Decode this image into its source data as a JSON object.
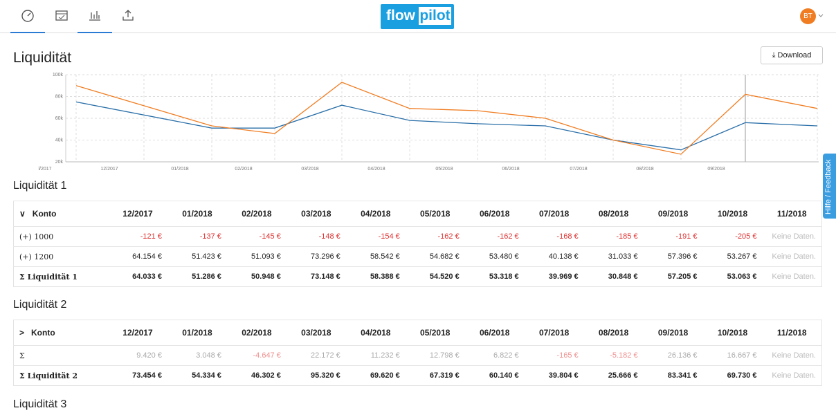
{
  "header": {
    "logo_left": "flow",
    "logo_right": "pilot",
    "avatar": "BT"
  },
  "page_title": "Liquidität",
  "download": "Download",
  "feedback": "Hilfe / Feedback",
  "chart_data": {
    "type": "line",
    "categories": [
      "l/2017",
      "12/2017",
      "01/2018",
      "02/2018",
      "03/2018",
      "04/2018",
      "05/2018",
      "06/2018",
      "07/2018",
      "08/2018",
      "09/2018"
    ],
    "series": [
      {
        "name": "Liquidität 1",
        "color": "#2a6fa8",
        "values": [
          75000,
          51000,
          51000,
          72000,
          58000,
          55000,
          53000,
          40000,
          31000,
          56000,
          53000
        ]
      },
      {
        "name": "Liquidität 2",
        "color": "#f07d22",
        "values": [
          90000,
          53000,
          46000,
          93000,
          69000,
          67000,
          60000,
          40000,
          27000,
          82000,
          69000
        ]
      }
    ],
    "ylim": [
      20000,
      100000
    ],
    "yticks": [
      {
        "value": 20000,
        "label": "20k"
      },
      {
        "value": 40000,
        "label": "40k"
      },
      {
        "value": 60000,
        "label": "60k"
      },
      {
        "value": 80000,
        "label": "80k"
      },
      {
        "value": 100000,
        "label": "100k"
      }
    ],
    "grid": true
  },
  "tables": [
    {
      "title": "Liquidität 1",
      "toggle": "∨",
      "header": [
        "Konto",
        "12/2017",
        "01/2018",
        "02/2018",
        "03/2018",
        "04/2018",
        "05/2018",
        "06/2018",
        "07/2018",
        "08/2018",
        "09/2018",
        "10/2018",
        "11/2018"
      ],
      "rows": [
        [
          "(+) 1000",
          "-121 €",
          "-137 €",
          "-145 €",
          "-148 €",
          "-154 €",
          "-162 €",
          "-162 €",
          "-168 €",
          "-185 €",
          "-191 €",
          "-205 €",
          "Keine Daten."
        ],
        [
          "(+) 1200",
          "64.154 €",
          "51.423 €",
          "51.093 €",
          "73.296 €",
          "58.542 €",
          "54.682 €",
          "53.480 €",
          "40.138 €",
          "31.033 €",
          "57.396 €",
          "53.267 €",
          "Keine Daten."
        ],
        [
          "Σ Liquidität 1",
          "64.033 €",
          "51.286 €",
          "50.948 €",
          "73.148 €",
          "58.388 €",
          "54.520 €",
          "53.318 €",
          "39.969 €",
          "30.848 €",
          "57.205 €",
          "53.063 €",
          "Keine Daten."
        ]
      ]
    },
    {
      "title": "Liquidität 2",
      "toggle": ">",
      "header": [
        "Konto",
        "12/2017",
        "01/2018",
        "02/2018",
        "03/2018",
        "04/2018",
        "05/2018",
        "06/2018",
        "07/2018",
        "08/2018",
        "09/2018",
        "10/2018",
        "11/2018"
      ],
      "rows": [
        [
          "Σ",
          "9.420 €",
          "3.048 €",
          "-4.647 €",
          "22.172 €",
          "11.232 €",
          "12.798 €",
          "6.822 €",
          "-165 €",
          "-5.182 €",
          "26.136 €",
          "16.667 €",
          "Keine Daten."
        ],
        [
          "Σ Liquidität 2",
          "73.454 €",
          "54.334 €",
          "46.302 €",
          "95.320 €",
          "69.620 €",
          "67.319 €",
          "60.140 €",
          "39.804 €",
          "25.666 €",
          "83.341 €",
          "69.730 €",
          "Keine Daten."
        ]
      ]
    },
    {
      "title": "Liquidität 3"
    }
  ]
}
